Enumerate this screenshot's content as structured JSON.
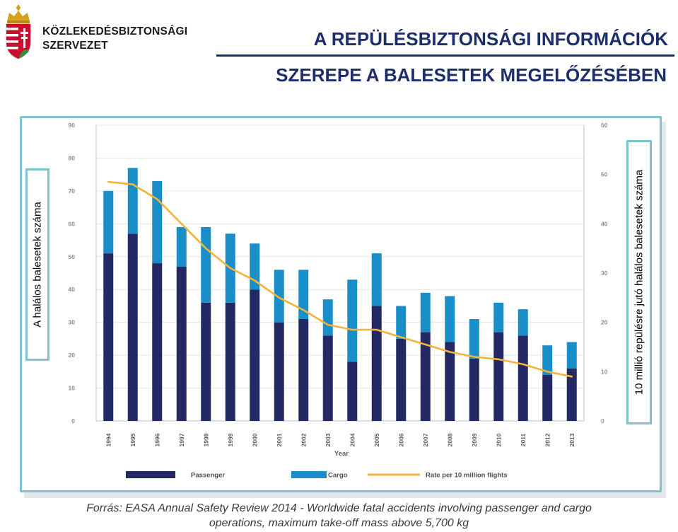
{
  "logo": {
    "line1": "KÖZLEKEDÉSBIZTONSÁGI",
    "line2": "SZERVEZET",
    "crest_colors": [
      "#c8102e",
      "#ffffff",
      "#3a8a3e",
      "#d4a21a"
    ]
  },
  "title": {
    "line1": "A REPÜLÉSBIZTONSÁGI INFORMÁCIÓK",
    "line2": "SZEREPE A BALESETEK MEGELŐZÉSÉBEN"
  },
  "axis_side_labels": {
    "left": "A halálos balesetek száma",
    "right": "10 millió repülésre jutó halálos balesetek száma"
  },
  "source": {
    "line1": "Forrás: EASA Annual Safety Review 2014 - Worldwide fatal accidents involving passenger and cargo",
    "line2": "operations, maximum take-off mass above 5,700 kg"
  },
  "chart_data": {
    "type": "bar",
    "stacked": true,
    "categories": [
      "1994",
      "1995",
      "1996",
      "1997",
      "1998",
      "1999",
      "2000",
      "2001",
      "2002",
      "2003",
      "2004",
      "2005",
      "2006",
      "2007",
      "2008",
      "2009",
      "2010",
      "2011",
      "2012",
      "2013"
    ],
    "series": [
      {
        "name": "Passenger",
        "color": "#232a63",
        "values": [
          51,
          57,
          48,
          47,
          36,
          36,
          40,
          30,
          31,
          26,
          18,
          35,
          25,
          27,
          24,
          19,
          27,
          26,
          14,
          16
        ]
      },
      {
        "name": "Cargo",
        "color": "#1a8ec8",
        "values": [
          19,
          20,
          25,
          12,
          23,
          21,
          14,
          16,
          15,
          11,
          25,
          16,
          10,
          12,
          14,
          12,
          9,
          8,
          9,
          8
        ]
      }
    ],
    "line_series": {
      "name": "Rate per 10 million flights",
      "color": "#f5b33a",
      "axis": "right",
      "values": [
        48.5,
        48,
        45,
        40,
        35,
        31,
        28.5,
        25,
        22.5,
        19.5,
        18.5,
        18.5,
        17,
        15.5,
        14,
        13,
        12.5,
        11.5,
        10,
        9
      ]
    },
    "xlabel": "Year",
    "ylabel": "",
    "ylim": [
      0,
      90
    ],
    "yticks": [
      0,
      10,
      20,
      30,
      40,
      50,
      60,
      70,
      80,
      90
    ],
    "y2lim": [
      0,
      60
    ],
    "y2ticks": [
      0,
      10,
      20,
      30,
      40,
      50,
      60
    ],
    "grid": true,
    "legend": "bottom"
  }
}
